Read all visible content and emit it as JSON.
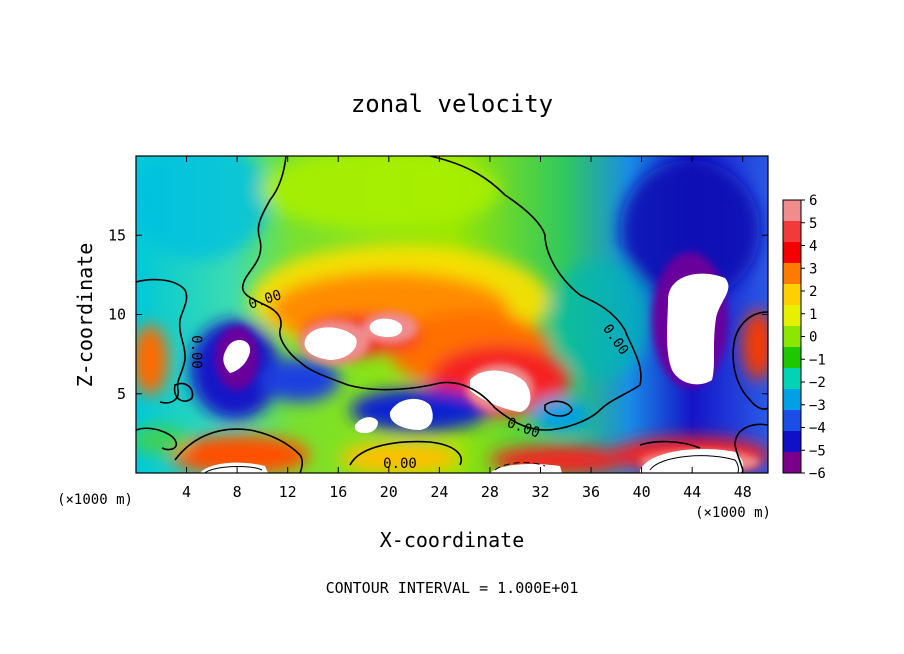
{
  "chart_data": {
    "type": "heatmap",
    "title": "zonal velocity",
    "xlabel": "X-coordinate",
    "ylabel": "Z-coordinate",
    "x_unit_left": "(×1000 m)",
    "x_unit_right": "(×1000 m)",
    "footer": "CONTOUR INTERVAL = 1.000E+01",
    "xlim": [
      0,
      50
    ],
    "ylim": [
      0,
      20
    ],
    "x_ticks": [
      4,
      8,
      12,
      16,
      20,
      24,
      28,
      32,
      36,
      40,
      44,
      48
    ],
    "y_ticks": [
      5,
      10,
      15
    ],
    "colorbar": {
      "levels": [
        6,
        5,
        4,
        3,
        2,
        1,
        0,
        -1,
        -2,
        -3,
        -4,
        -5,
        -6
      ],
      "colors": [
        "#f08c8c",
        "#f23a3a",
        "#f50000",
        "#ff7a00",
        "#ffd000",
        "#e6f000",
        "#8ce600",
        "#1ec800",
        "#00d4b4",
        "#00a0e6",
        "#1a4ee6",
        "#1010c8",
        "#7a008c"
      ]
    },
    "contour_labels": [
      "0.00",
      "0.00",
      "0.00",
      "0.00",
      "0.00"
    ],
    "features": [
      {
        "name": "background-left-cyan",
        "x": 4,
        "z": 16,
        "value": -2
      },
      {
        "name": "background-center-green",
        "x": 20,
        "z": 17,
        "value": 1
      },
      {
        "name": "background-right-blue",
        "x": 45,
        "z": 16,
        "value": -4.5
      },
      {
        "name": "jet-orange-core",
        "x": 22,
        "z": 11,
        "value": 3
      },
      {
        "name": "max-core-1",
        "x": 15.5,
        "z": 8.2,
        "value": 6.5
      },
      {
        "name": "max-core-2",
        "x": 20,
        "z": 9,
        "value": 6.5
      },
      {
        "name": "max-core-3",
        "x": 28.5,
        "z": 6,
        "value": 6.5
      },
      {
        "name": "min-core-right",
        "x": 44,
        "z": 10,
        "value": -6.5
      },
      {
        "name": "min-core-left",
        "x": 7.5,
        "z": 7.5,
        "value": -6.5
      },
      {
        "name": "low-level-red-jet",
        "x": 44,
        "z": 1,
        "value": 6.5
      }
    ]
  }
}
